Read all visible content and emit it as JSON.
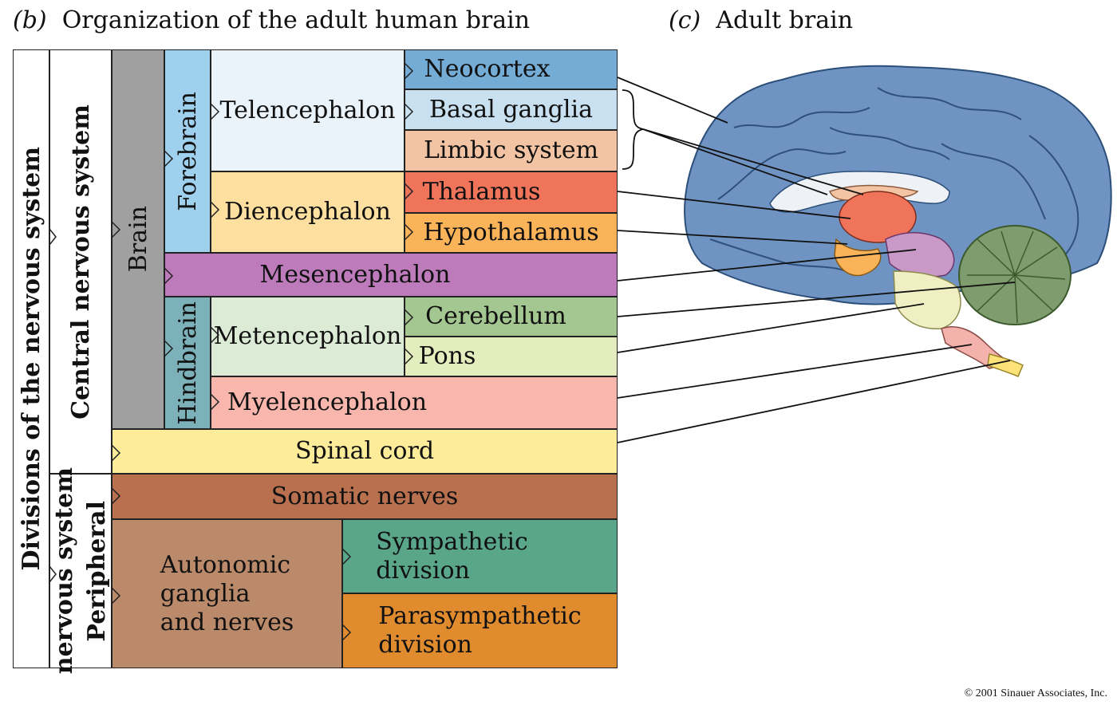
{
  "headings": {
    "b_letter": "(b)",
    "b_title": "Organization of the adult human brain",
    "c_letter": "(c)",
    "c_title": "Adult brain"
  },
  "levels": {
    "divisions": "Divisions of the nervous system",
    "cns": "Central nervous system",
    "pns_line1": "Peripheral",
    "pns_line2": "nervous system",
    "brain": "Brain",
    "forebrain": "Forebrain",
    "hindbrain": "Hindbrain"
  },
  "regions": {
    "telencephalon": "Telencephalon",
    "diencephalon": "Diencephalon",
    "mesencephalon": "Mesencephalon",
    "metencephalon": "Metencephalon",
    "myelencephalon": "Myelencephalon",
    "spinal_cord": "Spinal cord",
    "somatic_nerves": "Somatic nerves",
    "autonomic": "Autonomic\nganglia\nand nerves"
  },
  "structures": {
    "neocortex": "Neocortex",
    "basal_ganglia": "Basal ganglia",
    "limbic_system": "Limbic system",
    "thalamus": "Thalamus",
    "hypothalamus": "Hypothalamus",
    "cerebellum": "Cerebellum",
    "pons": "Pons",
    "sympathetic": "Sympathetic\ndivision",
    "parasympathetic": "Parasympathetic\ndivision"
  },
  "colors": {
    "divisions": "#ffffff",
    "brain": "#a0a0a0",
    "forebrain": "#9fd1ef",
    "telencephalon": "#e9f3f9",
    "neocortex": "#74acd6",
    "basal_ganglia": "#c9e0f0",
    "limbic_system": "#f2c4a4",
    "diencephalon": "#fde0a0",
    "thalamus": "#ef745a",
    "hypothalamus": "#fab359",
    "mesencephalon": "#bd7bbb",
    "hindbrain": "#7db1b9",
    "metencephalon": "#dcebd6",
    "cerebellum": "#a4c690",
    "pons": "#e4edbd",
    "myelencephalon": "#f8b6ad",
    "spinal_cord": "#fdec9a",
    "somatic_nerves": "#b8704f",
    "autonomic": "#bb8a6a",
    "sympathetic": "#5aa68a",
    "parasympathetic": "#e08b2e",
    "brain_cortex": "#6f94c3",
    "brain_cerebellum": "#7f9c6e"
  },
  "copyright": "© 2001 Sinauer Associates, Inc."
}
